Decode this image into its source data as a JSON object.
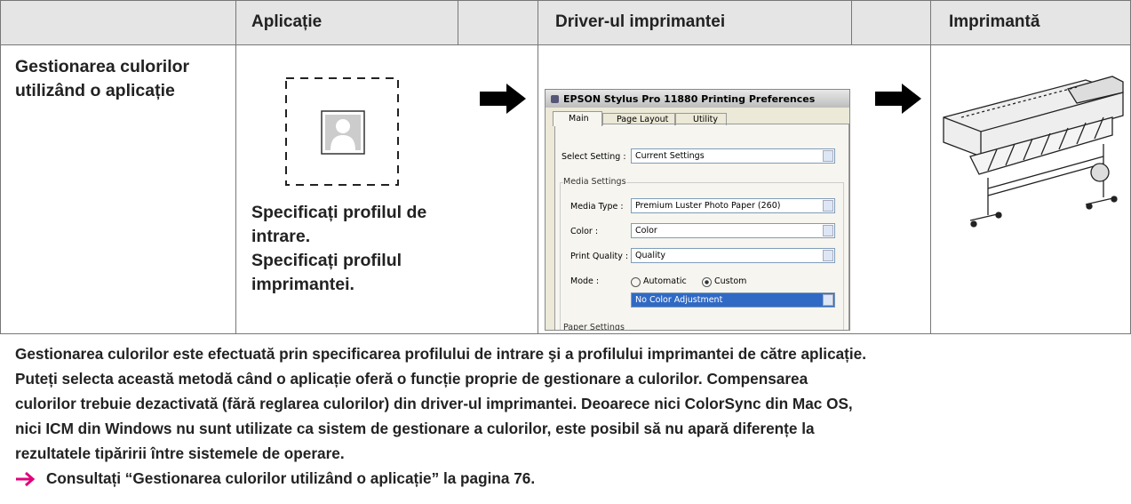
{
  "table": {
    "header": [
      "Aplicație",
      "Driver-ul imprimantei",
      "Imprimantă"
    ],
    "row_label": "Gestionarea culorilor utilizând o aplicație",
    "application_text": [
      "Specificați profilul de intrare.",
      "Specificați profilul imprimantei."
    ],
    "driver_dialog": {
      "title": "EPSON Stylus Pro 11880 Printing Preferences",
      "tabs": [
        "Main",
        "Page Layout",
        "Utility"
      ],
      "select_setting_label": "Select Setting :",
      "select_setting_value": "Current Settings",
      "group": "Media Settings",
      "fields": [
        {
          "label": "Media Type :",
          "value": "Premium Luster Photo Paper (260)"
        },
        {
          "label": "Color :",
          "value": "Color"
        },
        {
          "label": "Print Quality :",
          "value": "Quality"
        }
      ],
      "mode_label": "Mode :",
      "mode_options": [
        "Automatic",
        "Custom"
      ],
      "mode_value": "No Color Adjustment",
      "next_group": "Paper Settings"
    }
  },
  "description": [
    "Gestionarea culorilor este efectuată prin specificarea profilului de intrare şi a profilului imprimantei de către aplicație.",
    "Puteți selecta această metodă când o aplicație oferă o funcție proprie de gestionare a culorilor. Compensarea",
    "culorilor trebuie dezactivată (fără reglarea culorilor) din driver-ul imprimantei. Deoarece nici ColorSync din Mac OS,",
    "nici ICM din Windows nu sunt utilizate ca sistem de gestionare a culorilor, este posibil să nu apară diferențe la",
    "rezultatele tipăririi între sistemele de operare."
  ],
  "reference": "Consultați “Gestionarea culorilor utilizând o aplicație” la pagina 76."
}
